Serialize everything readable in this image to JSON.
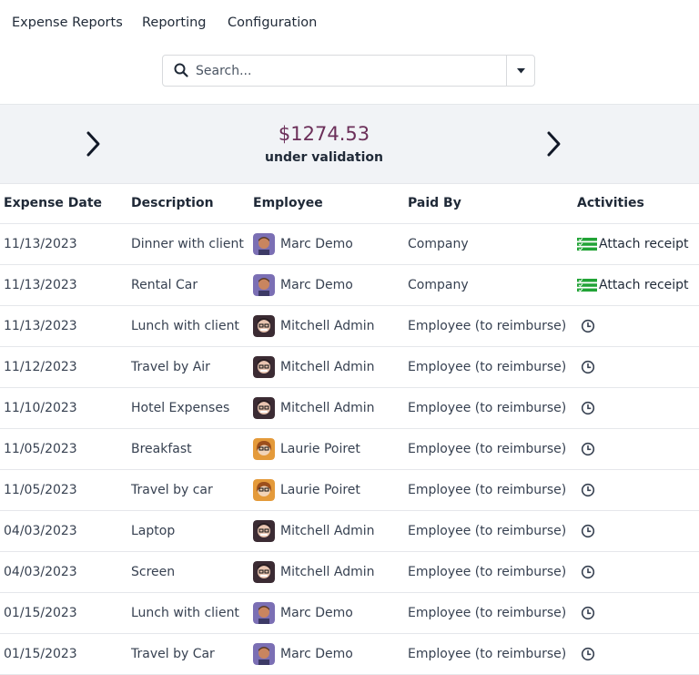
{
  "nav": {
    "items": [
      {
        "label": "Expense Reports"
      },
      {
        "label": "Reporting"
      },
      {
        "label": "Configuration"
      }
    ]
  },
  "search": {
    "placeholder": "Search...",
    "value": ""
  },
  "summary": {
    "amount": "$1274.53",
    "label": "under validation"
  },
  "table": {
    "headers": {
      "date": "Expense Date",
      "description": "Description",
      "employee": "Employee",
      "paid_by": "Paid By",
      "activities": "Activities"
    },
    "rows": [
      {
        "date": "11/13/2023",
        "description": "Dinner with client",
        "employee": "Marc Demo",
        "avatar": "marc",
        "paid_by": "Company",
        "activity": "Attach receipt",
        "activity_icon": "todo-list-icon"
      },
      {
        "date": "11/13/2023",
        "description": "Rental Car",
        "employee": "Marc Demo",
        "avatar": "marc",
        "paid_by": "Company",
        "activity": "Attach receipt",
        "activity_icon": "todo-list-icon"
      },
      {
        "date": "11/13/2023",
        "description": "Lunch with client",
        "employee": "Mitchell Admin",
        "avatar": "mitchell",
        "paid_by": "Employee (to reimburse)",
        "activity": "",
        "activity_icon": "clock-icon"
      },
      {
        "date": "11/12/2023",
        "description": "Travel by Air",
        "employee": "Mitchell Admin",
        "avatar": "mitchell",
        "paid_by": "Employee (to reimburse)",
        "activity": "",
        "activity_icon": "clock-icon"
      },
      {
        "date": "11/10/2023",
        "description": "Hotel Expenses",
        "employee": "Mitchell Admin",
        "avatar": "mitchell",
        "paid_by": "Employee (to reimburse)",
        "activity": "",
        "activity_icon": "clock-icon"
      },
      {
        "date": "11/05/2023",
        "description": "Breakfast",
        "employee": "Laurie Poiret",
        "avatar": "laurie",
        "paid_by": "Employee (to reimburse)",
        "activity": "",
        "activity_icon": "clock-icon"
      },
      {
        "date": "11/05/2023",
        "description": "Travel by car",
        "employee": "Laurie Poiret",
        "avatar": "laurie",
        "paid_by": "Employee (to reimburse)",
        "activity": "",
        "activity_icon": "clock-icon"
      },
      {
        "date": "04/03/2023",
        "description": "Laptop",
        "employee": "Mitchell Admin",
        "avatar": "mitchell",
        "paid_by": "Employee (to reimburse)",
        "activity": "",
        "activity_icon": "clock-icon"
      },
      {
        "date": "04/03/2023",
        "description": "Screen",
        "employee": "Mitchell Admin",
        "avatar": "mitchell",
        "paid_by": "Employee (to reimburse)",
        "activity": "",
        "activity_icon": "clock-icon"
      },
      {
        "date": "01/15/2023",
        "description": "Lunch with client",
        "employee": "Marc Demo",
        "avatar": "marc",
        "paid_by": "Employee (to reimburse)",
        "activity": "",
        "activity_icon": "clock-icon"
      },
      {
        "date": "01/15/2023",
        "description": "Travel by Car",
        "employee": "Marc Demo",
        "avatar": "marc",
        "paid_by": "Employee (to reimburse)",
        "activity": "",
        "activity_icon": "clock-icon"
      }
    ]
  },
  "colors": {
    "accent": "#6b2f59",
    "activity_green": "#21a336",
    "summary_bg": "#f1f3f6"
  }
}
